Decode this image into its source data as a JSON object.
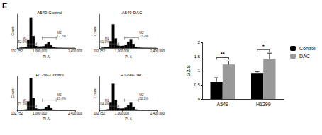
{
  "panel_label": "E",
  "chart_data": [
    {
      "type": "histogram",
      "title": "A549-Control",
      "xlabel": "PI-A",
      "ylabel": "Count",
      "bins": [
        200000,
        300000,
        400000,
        500000,
        600000,
        700000,
        800000,
        900000,
        1000000,
        1100000,
        1200000,
        1300000,
        1400000,
        1500000,
        1600000,
        1700000,
        1800000,
        1900000,
        2000000,
        2100000,
        2200000,
        2300000,
        2400000
      ],
      "counts": [
        10,
        15,
        30,
        250,
        900,
        350,
        60,
        45,
        45,
        55,
        120,
        180,
        80,
        20,
        10,
        6,
        4,
        3,
        2,
        2,
        1,
        1
      ],
      "color": "#000000",
      "xlim": [
        102752,
        2400000
      ],
      "xticks": [
        {
          "value": 102752,
          "label": "102,752"
        },
        {
          "value": 1000000,
          "label": "1,000,000"
        },
        {
          "value": 2400000,
          "label": "2,400,000"
        }
      ],
      "ylim": [
        0,
        1000
      ],
      "tick_labels": "x",
      "gates": [
        {
          "name": "M1",
          "range": [
            520000,
            880000
          ],
          "label": "62.9%"
        },
        {
          "name": "M2",
          "range": [
            1100000,
            1650000
          ],
          "label": "17.2%"
        }
      ]
    },
    {
      "type": "histogram",
      "title": "A549-DAC",
      "xlabel": "PI-A",
      "ylabel": "Count",
      "bins": [
        200000,
        300000,
        400000,
        500000,
        600000,
        700000,
        800000,
        900000,
        1000000,
        1100000,
        1200000,
        1300000,
        1400000,
        1500000,
        1600000,
        1700000,
        1800000,
        1900000,
        2000000,
        2100000,
        2200000,
        2300000,
        2400000
      ],
      "counts": [
        12,
        18,
        35,
        200,
        700,
        280,
        70,
        60,
        65,
        90,
        180,
        260,
        120,
        30,
        14,
        8,
        5,
        4,
        3,
        2,
        1,
        1
      ],
      "color": "#000000",
      "xlim": [
        102752,
        2400000
      ],
      "xticks": [
        {
          "value": 102752,
          "label": "102,752"
        },
        {
          "value": 1000000,
          "label": "1,000,000"
        },
        {
          "value": 2400000,
          "label": "2,400,000"
        }
      ],
      "ylim": [
        0,
        1000
      ],
      "tick_labels": "x",
      "gates": [
        {
          "name": "M1",
          "range": [
            520000,
            880000
          ],
          "label": "61.9%"
        },
        {
          "name": "M2",
          "range": [
            1100000,
            1650000
          ],
          "label": "27.2%"
        }
      ]
    },
    {
      "type": "histogram",
      "title": "H1299-Control",
      "xlabel": "PI-A",
      "ylabel": "Count",
      "bins": [
        200000,
        300000,
        400000,
        500000,
        600000,
        700000,
        800000,
        900000,
        1000000,
        1100000,
        1200000,
        1300000,
        1400000,
        1500000,
        1600000,
        1700000,
        1800000,
        1900000,
        2000000,
        2100000,
        2200000,
        2300000,
        2400000
      ],
      "counts": [
        10,
        14,
        25,
        260,
        950,
        360,
        55,
        35,
        35,
        40,
        90,
        140,
        60,
        16,
        8,
        5,
        3,
        2,
        2,
        1,
        1,
        1
      ],
      "color": "#000000",
      "xlim": [
        102752,
        2400000
      ],
      "xticks": [
        {
          "value": 102752,
          "label": "102,752"
        },
        {
          "value": 1000000,
          "label": "1,000,000"
        },
        {
          "value": 2400000,
          "label": "2,400,000"
        }
      ],
      "ylim": [
        0,
        1000
      ],
      "tick_labels": "x",
      "gates": [
        {
          "name": "M1",
          "range": [
            520000,
            880000
          ],
          "label": "71.3%"
        },
        {
          "name": "M2",
          "range": [
            1100000,
            1650000
          ],
          "label": "13.0%"
        }
      ]
    },
    {
      "type": "histogram",
      "title": "H1299-DAC",
      "xlabel": "PI-A",
      "ylabel": "Count",
      "bins": [
        200000,
        300000,
        400000,
        500000,
        600000,
        700000,
        800000,
        900000,
        1000000,
        1100000,
        1200000,
        1300000,
        1400000,
        1500000,
        1600000,
        1700000,
        1800000,
        1900000,
        2000000,
        2100000,
        2200000,
        2300000,
        2400000
      ],
      "counts": [
        12,
        16,
        30,
        220,
        780,
        300,
        60,
        50,
        55,
        75,
        150,
        220,
        100,
        25,
        12,
        7,
        4,
        3,
        2,
        2,
        1,
        1
      ],
      "color": "#000000",
      "xlim": [
        102752,
        2400000
      ],
      "xticks": [
        {
          "value": 102752,
          "label": "102,752"
        },
        {
          "value": 1000000,
          "label": "1,000,000"
        },
        {
          "value": 2400000,
          "label": "2,400,000"
        }
      ],
      "ylim": [
        0,
        1000
      ],
      "tick_labels": "x",
      "gates": [
        {
          "name": "M1",
          "range": [
            520000,
            880000
          ],
          "label": "64.4%"
        },
        {
          "name": "M2",
          "range": [
            1100000,
            1650000
          ],
          "label": "22.1%"
        }
      ]
    },
    {
      "type": "bar",
      "ylabel": "G2/S",
      "categories": [
        "A549",
        "H1299"
      ],
      "series": [
        {
          "name": "Control",
          "color": "#000000",
          "values": [
            0.6,
            0.92
          ],
          "errors": [
            0.15,
            0.04
          ]
        },
        {
          "name": "DAC",
          "color": "#999999",
          "values": [
            1.22,
            1.42
          ],
          "errors": [
            0.12,
            0.2
          ]
        }
      ],
      "ylim": [
        0,
        2
      ],
      "yticks": [
        0,
        0.5,
        1,
        1.5,
        2
      ],
      "legend": "top-right",
      "significance": [
        {
          "category": "A549",
          "label": "**"
        },
        {
          "category": "H1299",
          "label": "*"
        }
      ]
    }
  ]
}
